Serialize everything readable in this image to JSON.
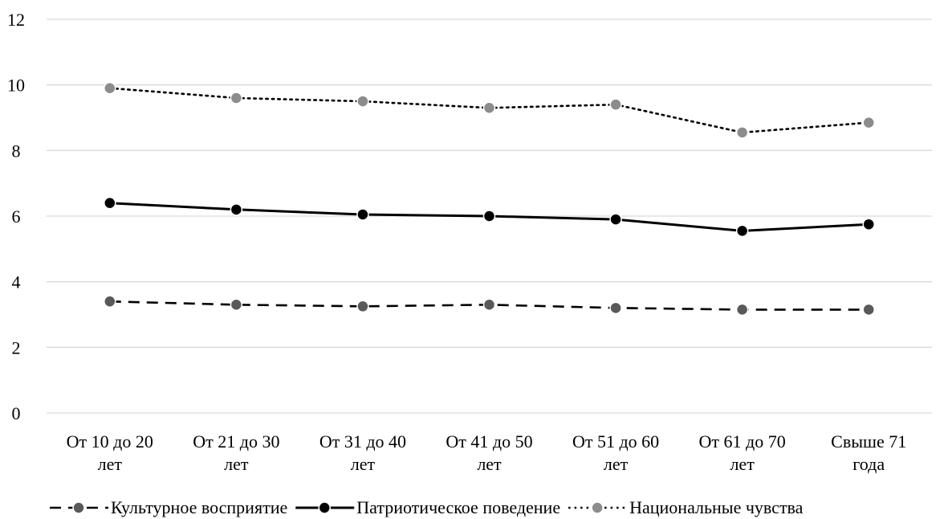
{
  "chart_data": {
    "type": "line",
    "title": "",
    "xlabel": "",
    "ylabel": "",
    "ylim": [
      0,
      12
    ],
    "yticks": [
      0,
      2,
      4,
      6,
      8,
      10,
      12
    ],
    "grid": true,
    "legend_position": "bottom",
    "categories": [
      [
        "От 10 до 20",
        "лет"
      ],
      [
        "От 21 до 30",
        "лет"
      ],
      [
        "От 31 до 40",
        "лет"
      ],
      [
        "От 41 до 50",
        "лет"
      ],
      [
        "От 51 до 60",
        "лет"
      ],
      [
        "От 61 до 70",
        "лет"
      ],
      [
        "Свыше 71",
        "года"
      ]
    ],
    "series": [
      {
        "name": "Культурное восприятие",
        "values": [
          3.4,
          3.3,
          3.25,
          3.3,
          3.2,
          3.15,
          3.15
        ],
        "line_color": "#000000",
        "marker_color": "#595959",
        "line_style": "dashed"
      },
      {
        "name": "Патриотическое поведение",
        "values": [
          6.4,
          6.2,
          6.05,
          6.0,
          5.9,
          5.55,
          5.75
        ],
        "line_color": "#000000",
        "marker_color": "#000000",
        "line_style": "solid"
      },
      {
        "name": "Национальные чувства",
        "values": [
          9.9,
          9.6,
          9.5,
          9.3,
          9.4,
          8.55,
          8.85
        ],
        "line_color": "#000000",
        "marker_color": "#8c8c8c",
        "line_style": "dotted"
      }
    ]
  }
}
